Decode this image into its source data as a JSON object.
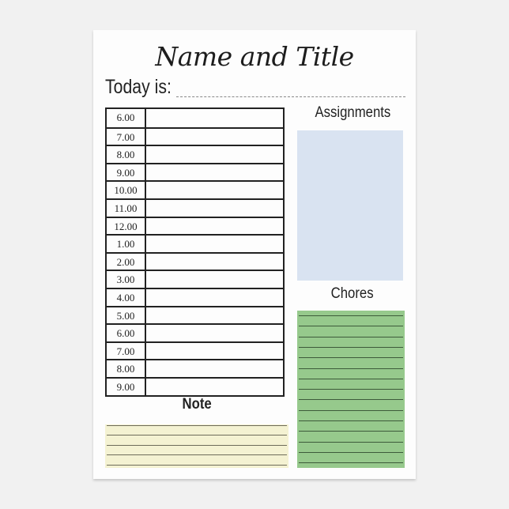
{
  "title": "Name and Title",
  "today_label": "Today is:",
  "schedule": {
    "times": [
      "6.00",
      "7.00",
      "8.00",
      "9.00",
      "10.00",
      "11.00",
      "12.00",
      "1.00",
      "2.00",
      "3.00",
      "4.00",
      "5.00",
      "6.00",
      "7.00",
      "8.00",
      "9.00"
    ]
  },
  "assignments": {
    "label": "Assignments",
    "color": "#d9e3f1"
  },
  "chores": {
    "label": "Chores",
    "color": "#96c98c",
    "line_count": 15
  },
  "note": {
    "label": "Note",
    "color": "#f4f2d2",
    "line_count": 5
  }
}
